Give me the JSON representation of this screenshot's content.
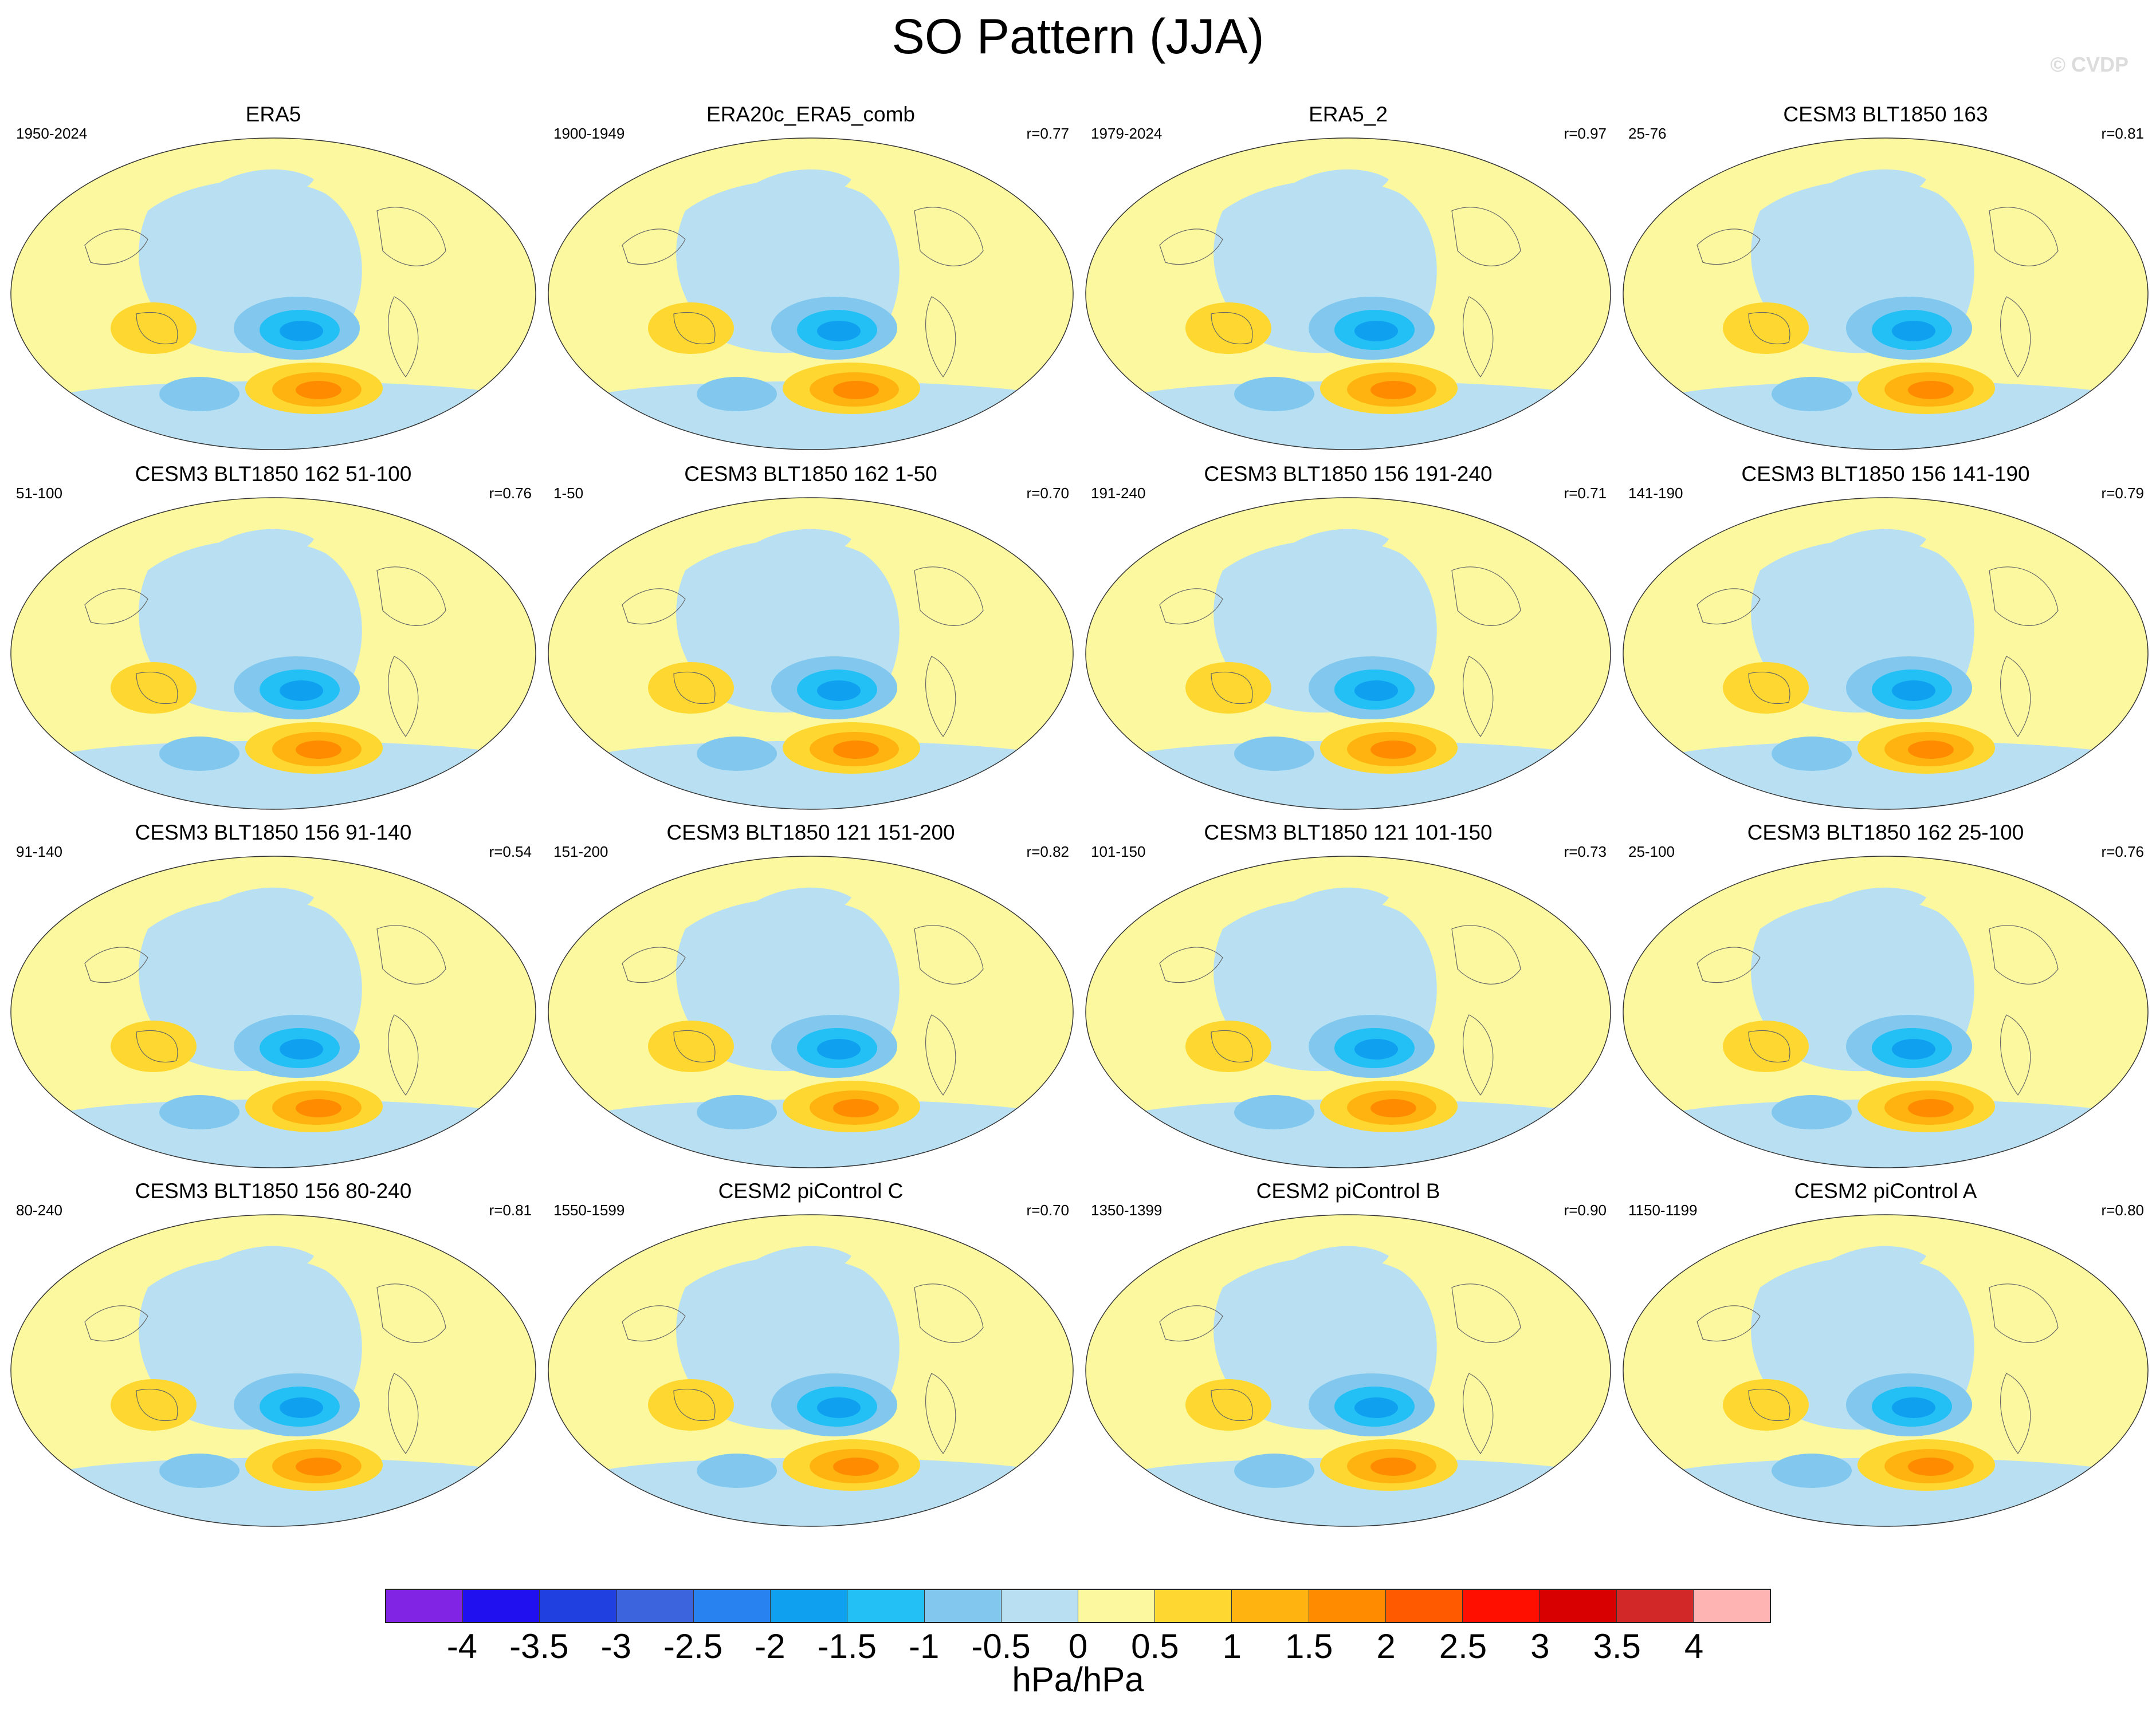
{
  "title": "SO Pattern (JJA)",
  "watermark": "© CVDP",
  "panels": [
    {
      "title": "ERA5",
      "period": "1950-2024",
      "corr": ""
    },
    {
      "title": "ERA20c_ERA5_comb",
      "period": "1900-1949",
      "corr": "r=0.77"
    },
    {
      "title": "ERA5_2",
      "period": "1979-2024",
      "corr": "r=0.97"
    },
    {
      "title": "CESM3 BLT1850 163",
      "period": "25-76",
      "corr": "r=0.81"
    },
    {
      "title": "CESM3 BLT1850 162 51-100",
      "period": "51-100",
      "corr": "r=0.76"
    },
    {
      "title": "CESM3 BLT1850 162 1-50",
      "period": "1-50",
      "corr": "r=0.70"
    },
    {
      "title": "CESM3 BLT1850 156 191-240",
      "period": "191-240",
      "corr": "r=0.71"
    },
    {
      "title": "CESM3 BLT1850 156 141-190",
      "period": "141-190",
      "corr": "r=0.79"
    },
    {
      "title": "CESM3 BLT1850 156 91-140",
      "period": "91-140",
      "corr": "r=0.54"
    },
    {
      "title": "CESM3 BLT1850 121 151-200",
      "period": "151-200",
      "corr": "r=0.82"
    },
    {
      "title": "CESM3 BLT1850 121 101-150",
      "period": "101-150",
      "corr": "r=0.73"
    },
    {
      "title": "CESM3 BLT1850 162 25-100",
      "period": "25-100",
      "corr": "r=0.76"
    },
    {
      "title": "CESM3 BLT1850 156 80-240",
      "period": "80-240",
      "corr": "r=0.81"
    },
    {
      "title": "CESM2 piControl C",
      "period": "1550-1599",
      "corr": "r=0.70"
    },
    {
      "title": "CESM2 piControl B",
      "period": "1350-1399",
      "corr": "r=0.90"
    },
    {
      "title": "CESM2 piControl A",
      "period": "1150-1199",
      "corr": "r=0.80"
    }
  ],
  "colorbar": {
    "colors": [
      "#8224e3",
      "#2010f0",
      "#2040e0",
      "#3c64dc",
      "#2882f0",
      "#0fa0f0",
      "#23c0f5",
      "#82c8ee",
      "#b8e0f2",
      "#fbf8a0",
      "#fed830",
      "#ffb310",
      "#ff8c00",
      "#ff5a00",
      "#ff0f00",
      "#d80000",
      "#d22828",
      "#ffb4b4"
    ],
    "labels": [
      "-4",
      "-3.5",
      "-3",
      "-2.5",
      "-2",
      "-1.5",
      "-1",
      "-0.5",
      "0",
      "0.5",
      "1",
      "1.5",
      "2",
      "2.5",
      "3",
      "3.5",
      "4"
    ],
    "units": "hPa/hPa"
  }
}
